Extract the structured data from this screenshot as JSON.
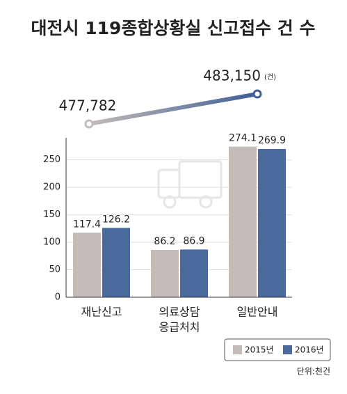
{
  "chart_data": {
    "type": "bar",
    "title": "대전시 119종합상황실 신고접수 건 수",
    "totals": {
      "values": [
        477782,
        483150
      ],
      "value_labels": [
        "477,782",
        "483,150"
      ],
      "unit": "(건)"
    },
    "categories": [
      "재난신고",
      [
        "의료상담",
        "응급처치"
      ],
      "일반안내"
    ],
    "series": [
      {
        "name": "2015년",
        "color": "#c4bcb8",
        "values": [
          117.4,
          86.2,
          274.1
        ]
      },
      {
        "name": "2016년",
        "color": "#4a6a9e",
        "values": [
          126.2,
          86.9,
          269.9
        ]
      }
    ],
    "ylim": [
      0,
      280
    ],
    "yticks": [
      0,
      50,
      100,
      150,
      200,
      250
    ],
    "grid": true,
    "unit_note": "단위:천건"
  }
}
